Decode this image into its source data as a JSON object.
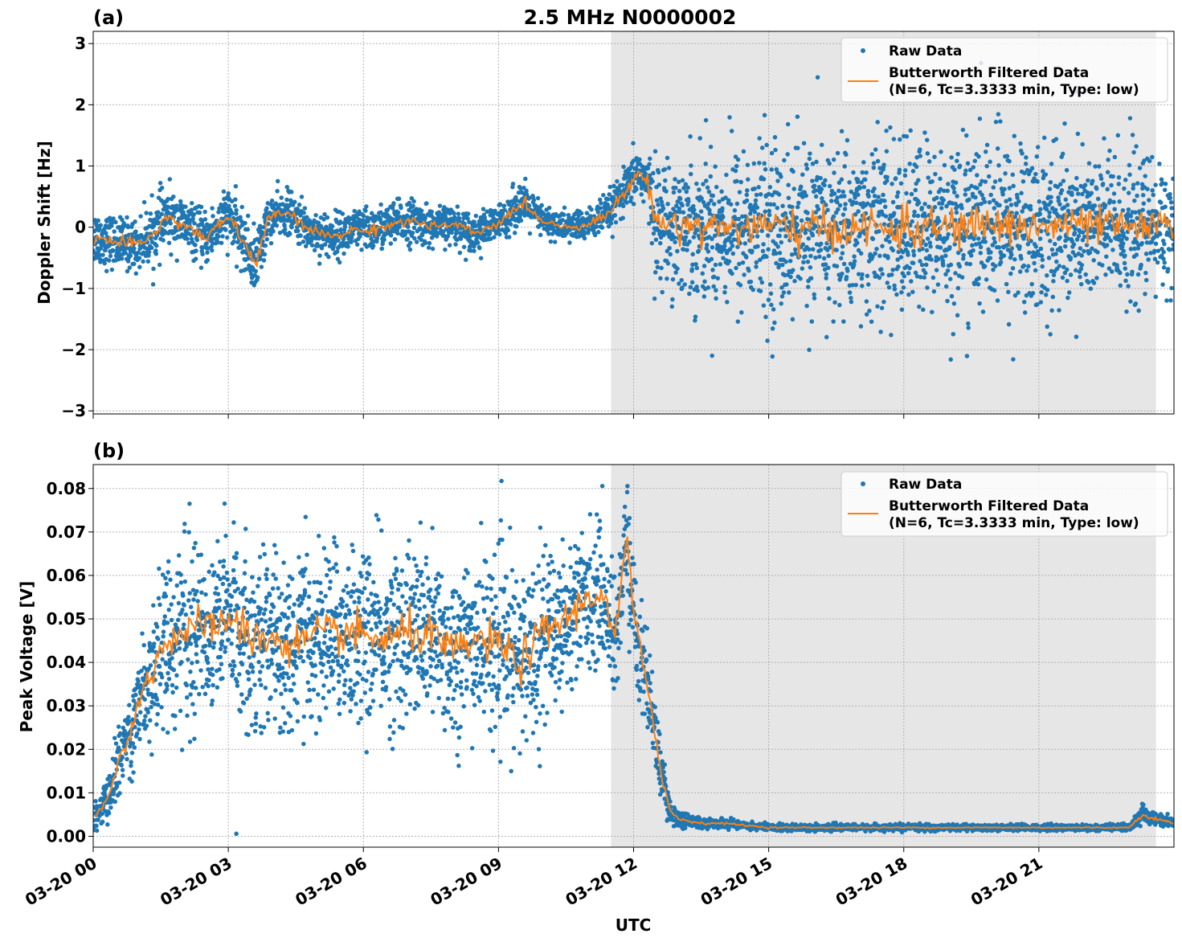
{
  "figure": {
    "suptitle": "2.5 MHz N0000002",
    "xlabel": "UTC",
    "x_ticks": [
      "03-20 00",
      "03-20 03",
      "03-20 06",
      "03-20 09",
      "03-20 12",
      "03-20 15",
      "03-20 18",
      "03-20 21"
    ],
    "x_tick_hours": [
      0,
      3,
      6,
      9,
      12,
      15,
      18,
      21
    ],
    "xlim_hours": [
      0,
      24
    ],
    "shaded_region_hours": [
      11.5,
      23.6
    ],
    "colors": {
      "raw": "#1f77b4",
      "filtered": "#ff7f0e",
      "shade": "#e6e6e6",
      "grid": "#b0b0b0"
    }
  },
  "chart_data": [
    {
      "type": "scatter",
      "panel_label": "(a)",
      "ylabel": "Doppler Shift [Hz]",
      "ylim": [
        -3.05,
        3.2
      ],
      "y_ticks": [
        3,
        2,
        1,
        0,
        -1,
        -2,
        -3
      ],
      "y_tick_labels": [
        "3",
        "2",
        "1",
        "0",
        "−1",
        "−2",
        "−3"
      ],
      "grid": true,
      "legend": {
        "placement": "top-right",
        "raw_label": "Raw Data",
        "filtered_label_1": "Butterworth Filtered Data",
        "filtered_label_2": "(N=6, Tc=3.3333 min, Type: low)"
      },
      "series": [
        {
          "name": "Butterworth Filtered Data",
          "x_hours": [
            0,
            0.5,
            1.0,
            1.4,
            1.6,
            2.0,
            2.5,
            3.0,
            3.3,
            3.6,
            3.9,
            4.3,
            4.8,
            5.3,
            5.8,
            6.2,
            6.6,
            7.1,
            7.6,
            8.0,
            8.5,
            9.0,
            9.5,
            10.0,
            10.5,
            11.0,
            11.4,
            11.8,
            12.1,
            12.3,
            12.5,
            13.0,
            14.0,
            15.0,
            16.0,
            17.0,
            18.0,
            19.0,
            20.0,
            21.0,
            22.0,
            23.0,
            24.0
          ],
          "y": [
            -0.15,
            -0.25,
            -0.3,
            -0.05,
            0.15,
            0.05,
            -0.2,
            0.2,
            -0.2,
            -0.6,
            0.15,
            0.25,
            -0.05,
            -0.15,
            -0.05,
            -0.05,
            0.05,
            0.1,
            0.0,
            0.05,
            -0.1,
            0.05,
            0.4,
            0.1,
            0.0,
            0.05,
            0.2,
            0.55,
            0.9,
            0.75,
            0.1,
            0.05,
            0.0,
            0.0,
            -0.05,
            0.0,
            -0.05,
            0.0,
            0.05,
            0.0,
            0.05,
            0.0,
            0.0
          ]
        },
        {
          "name": "Raw Data",
          "x_hours": [
            0,
            0.5,
            1.0,
            1.4,
            1.6,
            2.0,
            2.5,
            3.0,
            3.3,
            3.6,
            3.9,
            4.3,
            4.8,
            5.3,
            5.8,
            6.2,
            6.6,
            7.1,
            7.6,
            8.0,
            8.5,
            9.0,
            9.5,
            10.0,
            10.5,
            11.0,
            11.4,
            11.8,
            12.1,
            12.3,
            12.5,
            13.0,
            14.0,
            15.0,
            16.0,
            17.0,
            18.0,
            19.0,
            20.0,
            21.0,
            22.0,
            23.0,
            24.0
          ],
          "spread": [
            0.45,
            0.4,
            0.4,
            0.5,
            0.5,
            0.4,
            0.4,
            0.45,
            0.45,
            0.5,
            0.35,
            0.35,
            0.35,
            0.35,
            0.35,
            0.35,
            0.35,
            0.35,
            0.3,
            0.3,
            0.3,
            0.3,
            0.35,
            0.25,
            0.25,
            0.25,
            0.3,
            0.35,
            0.4,
            0.5,
            0.9,
            1.1,
            1.3,
            1.4,
            1.4,
            1.4,
            1.4,
            1.4,
            1.4,
            1.4,
            1.3,
            1.2,
            1.0
          ]
        }
      ]
    },
    {
      "type": "scatter",
      "panel_label": "(b)",
      "ylabel": "Peak Voltage [V]",
      "ylim": [
        -0.0025,
        0.0855
      ],
      "y_ticks": [
        0.08,
        0.07,
        0.06,
        0.05,
        0.04,
        0.03,
        0.02,
        0.01,
        0.0
      ],
      "y_tick_labels": [
        "0.08",
        "0.07",
        "0.06",
        "0.05",
        "0.04",
        "0.03",
        "0.02",
        "0.01",
        "0.00"
      ],
      "grid": true,
      "legend": {
        "placement": "top-right",
        "raw_label": "Raw Data",
        "filtered_label_1": "Butterworth Filtered Data",
        "filtered_label_2": "(N=6, Tc=3.3333 min, Type: low)"
      },
      "series": [
        {
          "name": "Butterworth Filtered Data",
          "x_hours": [
            0,
            0.3,
            0.6,
            1.0,
            1.3,
            1.6,
            2.0,
            2.5,
            3.0,
            3.5,
            4.0,
            4.5,
            5.0,
            5.5,
            6.0,
            6.5,
            7.0,
            7.5,
            8.0,
            8.5,
            9.0,
            9.5,
            10.0,
            10.5,
            11.0,
            11.3,
            11.6,
            11.85,
            12.0,
            12.2,
            12.4,
            12.6,
            12.8,
            13.0,
            13.5,
            14.0,
            15.0,
            16.0,
            17.0,
            18.0,
            19.0,
            20.0,
            21.0,
            22.0,
            23.0,
            23.3,
            23.6,
            24.0
          ],
          "y": [
            0.004,
            0.008,
            0.018,
            0.03,
            0.038,
            0.045,
            0.047,
            0.048,
            0.05,
            0.046,
            0.045,
            0.044,
            0.046,
            0.047,
            0.046,
            0.045,
            0.047,
            0.046,
            0.042,
            0.045,
            0.044,
            0.04,
            0.047,
            0.05,
            0.055,
            0.056,
            0.045,
            0.07,
            0.05,
            0.04,
            0.03,
            0.015,
            0.006,
            0.004,
            0.003,
            0.003,
            0.002,
            0.002,
            0.002,
            0.002,
            0.002,
            0.002,
            0.002,
            0.002,
            0.002,
            0.005,
            0.004,
            0.003
          ]
        },
        {
          "name": "Raw Data",
          "x_hours": [
            0,
            0.3,
            0.6,
            1.0,
            1.3,
            1.6,
            2.0,
            2.5,
            3.0,
            3.5,
            4.0,
            4.5,
            5.0,
            5.5,
            6.0,
            6.5,
            7.0,
            7.5,
            8.0,
            8.5,
            9.0,
            9.5,
            10.0,
            10.5,
            11.0,
            11.3,
            11.6,
            11.85,
            12.0,
            12.2,
            12.4,
            12.6,
            12.8,
            13.0,
            13.5,
            14.0,
            15.0,
            16.0,
            17.0,
            18.0,
            19.0,
            20.0,
            21.0,
            22.0,
            23.0,
            23.3,
            23.6,
            24.0
          ],
          "spread": [
            0.003,
            0.005,
            0.008,
            0.012,
            0.015,
            0.018,
            0.02,
            0.02,
            0.02,
            0.02,
            0.02,
            0.02,
            0.02,
            0.02,
            0.02,
            0.02,
            0.02,
            0.02,
            0.02,
            0.02,
            0.02,
            0.02,
            0.02,
            0.018,
            0.016,
            0.015,
            0.015,
            0.012,
            0.015,
            0.012,
            0.01,
            0.006,
            0.003,
            0.002,
            0.0012,
            0.001,
            0.0008,
            0.0007,
            0.0007,
            0.0007,
            0.0007,
            0.0007,
            0.0007,
            0.0007,
            0.0008,
            0.002,
            0.0015,
            0.001
          ]
        }
      ]
    }
  ]
}
